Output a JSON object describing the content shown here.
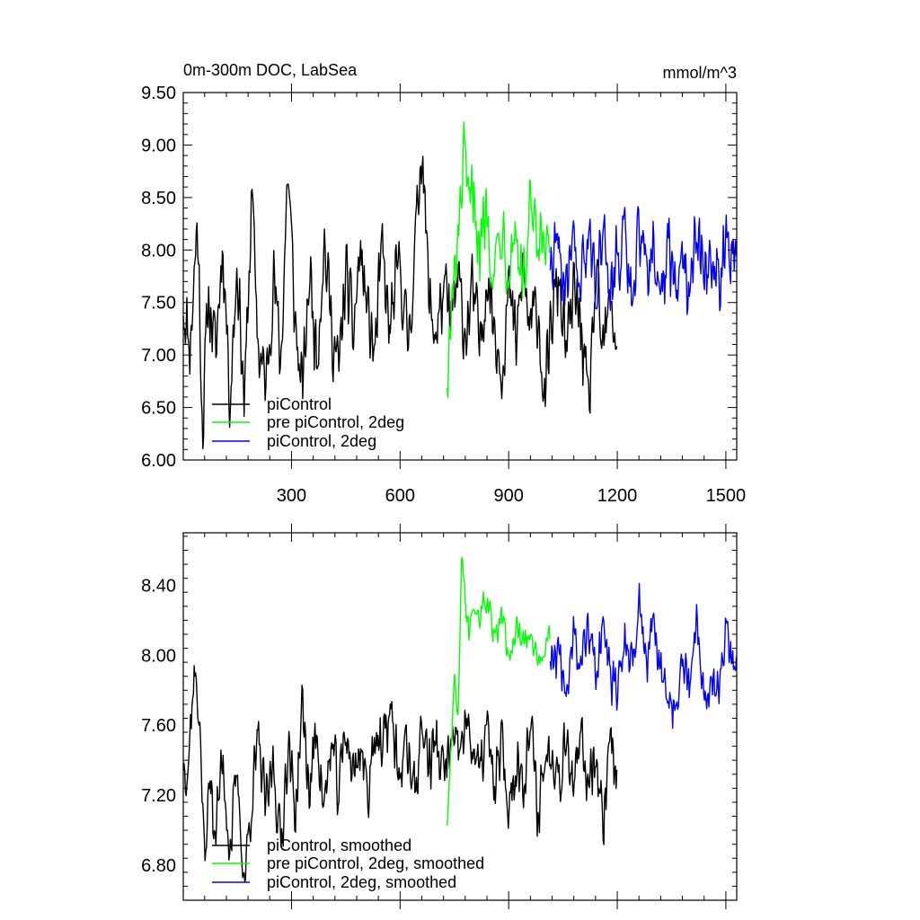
{
  "chart_data": [
    {
      "type": "line",
      "title_left": "0m-300m DOC, LabSea",
      "title_right": "mmol/m^3",
      "xlim": [
        1,
        1530
      ],
      "ylim": [
        6.0,
        9.5
      ],
      "xticks": [
        300,
        600,
        900,
        1200,
        1500
      ],
      "xtick_labels": [
        "300",
        "600",
        "900",
        "1200",
        "1500"
      ],
      "yticks": [
        6.0,
        6.5,
        7.0,
        7.5,
        8.0,
        8.5,
        9.0,
        9.5
      ],
      "ytick_labels": [
        "6.00",
        "6.50",
        "7.00",
        "7.50",
        "8.00",
        "8.50",
        "9.00",
        "9.50"
      ],
      "legend_position": "bottom-left",
      "series": [
        {
          "name": "piControl",
          "color": "#000000",
          "x_start": 1,
          "x_end": 1200,
          "points": [
            [
              1,
              7.5
            ],
            [
              20,
              7.1
            ],
            [
              40,
              8.3
            ],
            [
              55,
              6.3
            ],
            [
              70,
              7.6
            ],
            [
              90,
              7.0
            ],
            [
              110,
              8.1
            ],
            [
              130,
              6.6
            ],
            [
              150,
              7.9
            ],
            [
              170,
              6.5
            ],
            [
              190,
              8.5
            ],
            [
              210,
              7.0
            ],
            [
              230,
              6.7
            ],
            [
              250,
              7.8
            ],
            [
              270,
              6.9
            ],
            [
              290,
              8.8
            ],
            [
              310,
              7.3
            ],
            [
              330,
              6.6
            ],
            [
              350,
              7.8
            ],
            [
              370,
              7.0
            ],
            [
              390,
              8.1
            ],
            [
              410,
              7.3
            ],
            [
              430,
              6.8
            ],
            [
              450,
              7.8
            ],
            [
              470,
              7.2
            ],
            [
              490,
              8.0
            ],
            [
              510,
              7.4
            ],
            [
              530,
              7.0
            ],
            [
              550,
              8.0
            ],
            [
              570,
              7.2
            ],
            [
              600,
              7.9
            ],
            [
              620,
              7.1
            ],
            [
              640,
              7.9
            ],
            [
              660,
              9.1
            ],
            [
              680,
              7.5
            ],
            [
              700,
              7.2
            ],
            [
              720,
              7.6
            ],
            [
              740,
              7.3
            ],
            [
              760,
              7.7
            ],
            [
              780,
              7.2
            ],
            [
              800,
              7.6
            ],
            [
              820,
              7.1
            ],
            [
              840,
              7.8
            ],
            [
              860,
              7.3
            ],
            [
              880,
              6.9
            ],
            [
              900,
              7.6
            ],
            [
              920,
              7.1
            ],
            [
              940,
              7.8
            ],
            [
              960,
              7.2
            ],
            [
              980,
              7.5
            ],
            [
              1000,
              6.5
            ],
            [
              1020,
              7.4
            ],
            [
              1040,
              7.7
            ],
            [
              1060,
              7.0
            ],
            [
              1080,
              7.6
            ],
            [
              1100,
              7.3
            ],
            [
              1120,
              6.4
            ],
            [
              1140,
              7.7
            ],
            [
              1160,
              7.0
            ],
            [
              1180,
              7.5
            ],
            [
              1200,
              7.1
            ]
          ],
          "amp": 0.45
        },
        {
          "name": "pre piControl, 2deg",
          "color": "#00ff00",
          "x_start": 730,
          "x_end": 1015,
          "points": [
            [
              730,
              6.8
            ],
            [
              745,
              7.5
            ],
            [
              760,
              8.0
            ],
            [
              775,
              8.9
            ],
            [
              790,
              8.3
            ],
            [
              805,
              8.6
            ],
            [
              820,
              8.0
            ],
            [
              840,
              8.4
            ],
            [
              860,
              7.8
            ],
            [
              880,
              8.3
            ],
            [
              900,
              7.9
            ],
            [
              920,
              8.2
            ],
            [
              940,
              7.6
            ],
            [
              960,
              8.4
            ],
            [
              980,
              7.9
            ],
            [
              1000,
              8.1
            ],
            [
              1015,
              7.8
            ]
          ],
          "amp": 0.45
        },
        {
          "name": "piControl, 2deg",
          "color": "#0000ff",
          "x_start": 1015,
          "x_end": 1530,
          "points": [
            [
              1015,
              7.9
            ],
            [
              1040,
              8.1
            ],
            [
              1060,
              7.5
            ],
            [
              1080,
              8.0
            ],
            [
              1100,
              7.6
            ],
            [
              1120,
              8.2
            ],
            [
              1140,
              7.7
            ],
            [
              1160,
              8.1
            ],
            [
              1180,
              7.6
            ],
            [
              1200,
              7.9
            ],
            [
              1220,
              8.1
            ],
            [
              1240,
              7.6
            ],
            [
              1260,
              8.2
            ],
            [
              1280,
              7.9
            ],
            [
              1300,
              8.0
            ],
            [
              1320,
              7.6
            ],
            [
              1340,
              8.1
            ],
            [
              1360,
              7.5
            ],
            [
              1380,
              8.0
            ],
            [
              1400,
              7.7
            ],
            [
              1420,
              8.3
            ],
            [
              1440,
              7.8
            ],
            [
              1460,
              8.0
            ],
            [
              1480,
              7.7
            ],
            [
              1500,
              8.1
            ],
            [
              1530,
              7.9
            ]
          ],
          "amp": 0.45
        }
      ]
    },
    {
      "type": "line",
      "xlim": [
        1,
        1530
      ],
      "ylim": [
        6.6,
        8.7
      ],
      "xticks": [
        300,
        600,
        900,
        1200,
        1500
      ],
      "yticks": [
        6.8,
        7.2,
        7.6,
        8.0,
        8.4
      ],
      "ytick_labels": [
        "6.80",
        "7.20",
        "7.60",
        "8.00",
        "8.40"
      ],
      "legend_position": "bottom-left",
      "series": [
        {
          "name": "piControl, smoothed",
          "color": "#000000",
          "x_start": 1,
          "x_end": 1200,
          "points": [
            [
              1,
              7.4
            ],
            [
              15,
              7.4
            ],
            [
              30,
              7.9
            ],
            [
              45,
              7.7
            ],
            [
              60,
              6.8
            ],
            [
              75,
              7.3
            ],
            [
              90,
              7.0
            ],
            [
              110,
              7.4
            ],
            [
              130,
              6.9
            ],
            [
              150,
              7.3
            ],
            [
              170,
              6.7
            ],
            [
              190,
              7.2
            ],
            [
              210,
              7.5
            ],
            [
              230,
              7.1
            ],
            [
              250,
              7.4
            ],
            [
              270,
              6.9
            ],
            [
              290,
              7.5
            ],
            [
              310,
              7.1
            ],
            [
              330,
              7.7
            ],
            [
              350,
              7.2
            ],
            [
              370,
              7.6
            ],
            [
              390,
              7.1
            ],
            [
              410,
              7.5
            ],
            [
              430,
              7.2
            ],
            [
              450,
              7.6
            ],
            [
              470,
              7.3
            ],
            [
              490,
              7.5
            ],
            [
              510,
              7.2
            ],
            [
              530,
              7.6
            ],
            [
              550,
              7.4
            ],
            [
              570,
              7.7
            ],
            [
              600,
              7.3
            ],
            [
              620,
              7.5
            ],
            [
              640,
              7.2
            ],
            [
              660,
              7.6
            ],
            [
              680,
              7.4
            ],
            [
              700,
              7.5
            ],
            [
              720,
              7.3
            ],
            [
              740,
              7.5
            ],
            [
              760,
              7.4
            ],
            [
              780,
              7.6
            ],
            [
              800,
              7.5
            ],
            [
              820,
              7.3
            ],
            [
              840,
              7.6
            ],
            [
              860,
              7.2
            ],
            [
              880,
              7.5
            ],
            [
              900,
              7.1
            ],
            [
              920,
              7.4
            ],
            [
              940,
              7.3
            ],
            [
              960,
              7.6
            ],
            [
              980,
              7.1
            ],
            [
              1000,
              7.4
            ],
            [
              1020,
              7.5
            ],
            [
              1040,
              7.3
            ],
            [
              1060,
              7.6
            ],
            [
              1080,
              7.2
            ],
            [
              1100,
              7.5
            ],
            [
              1120,
              7.3
            ],
            [
              1140,
              7.5
            ],
            [
              1160,
              7.0
            ],
            [
              1180,
              7.6
            ],
            [
              1200,
              7.3
            ]
          ],
          "amp": 0.22
        },
        {
          "name": "pre piControl, 2deg, smoothed",
          "color": "#00ff00",
          "x_start": 730,
          "x_end": 1015,
          "points": [
            [
              730,
              7.05
            ],
            [
              740,
              7.4
            ],
            [
              750,
              7.9
            ],
            [
              760,
              7.6
            ],
            [
              770,
              8.6
            ],
            [
              780,
              8.3
            ],
            [
              790,
              8.1
            ],
            [
              800,
              8.3
            ],
            [
              820,
              8.25
            ],
            [
              840,
              8.3
            ],
            [
              860,
              8.1
            ],
            [
              880,
              8.2
            ],
            [
              900,
              8.0
            ],
            [
              920,
              8.15
            ],
            [
              940,
              8.05
            ],
            [
              960,
              8.1
            ],
            [
              980,
              8.0
            ],
            [
              1000,
              8.05
            ],
            [
              1015,
              8.1
            ]
          ],
          "amp": 0.1
        },
        {
          "name": "piControl, 2deg, smoothed",
          "color": "#0000ff",
          "x_start": 1015,
          "x_end": 1530,
          "points": [
            [
              1015,
              8.0
            ],
            [
              1040,
              8.0
            ],
            [
              1060,
              7.8
            ],
            [
              1080,
              8.1
            ],
            [
              1100,
              7.9
            ],
            [
              1120,
              8.2
            ],
            [
              1140,
              7.9
            ],
            [
              1160,
              8.1
            ],
            [
              1180,
              7.9
            ],
            [
              1200,
              7.8
            ],
            [
              1220,
              8.1
            ],
            [
              1240,
              7.9
            ],
            [
              1260,
              8.3
            ],
            [
              1280,
              7.9
            ],
            [
              1300,
              8.2
            ],
            [
              1320,
              7.9
            ],
            [
              1340,
              7.8
            ],
            [
              1360,
              7.7
            ],
            [
              1380,
              8.0
            ],
            [
              1400,
              7.8
            ],
            [
              1420,
              8.2
            ],
            [
              1440,
              7.7
            ],
            [
              1460,
              7.9
            ],
            [
              1480,
              7.8
            ],
            [
              1500,
              8.1
            ],
            [
              1530,
              7.9
            ]
          ],
          "amp": 0.18
        }
      ]
    }
  ]
}
